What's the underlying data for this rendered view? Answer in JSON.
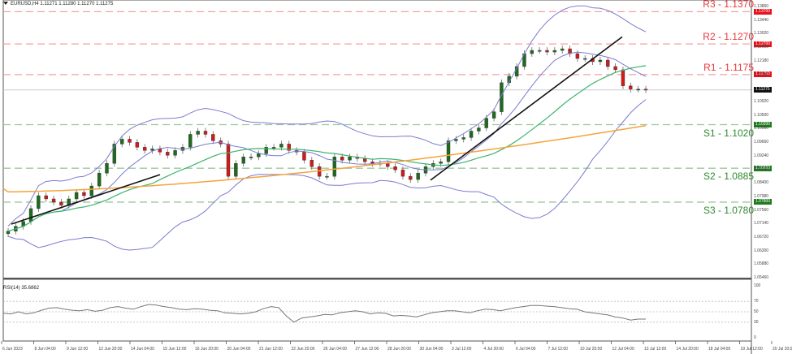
{
  "chart_data": [
    {
      "type": "candlestick",
      "title": "EURUSD,H4",
      "ohlc_header": {
        "open": "1.11271",
        "high": "1.11280",
        "low": "1.11270",
        "close": "1.11275"
      },
      "current_price": "1.11275",
      "y_axis_ticks": [
        "1.13860",
        "1.13440",
        "1.13020",
        "1.12600",
        "1.12180",
        "1.11760",
        "1.10920",
        "1.10500",
        "1.10080",
        "1.09660",
        "1.09240",
        "1.08820",
        "1.08400",
        "1.07980",
        "1.07560",
        "1.07140",
        "1.06720",
        "1.06300",
        "1.05880",
        "1.05460"
      ],
      "ylim": [
        1.0546,
        1.1386
      ],
      "x_tick_labels": [
        "6 Jun 2023",
        "8 Jun 04:00",
        "9 Jun 12:00",
        "12 Jun 20:00",
        "14 Jun 04:00",
        "15 Jun 12:00",
        "16 Jun 20:00",
        "20 Jun 04:00",
        "21 Jun 12:00",
        "22 Jun 20:00",
        "26 Jun 04:00",
        "27 Jun 12:00",
        "28 Jun 20:00",
        "30 Jun 04:00",
        "3 Jul 12:00",
        "4 Jul 20:00",
        "6 Jul 04:00",
        "7 Jul 12:00",
        "10 Jul 20:00",
        "12 Jul 04:00",
        "13 Jul 12:00",
        "14 Jul 20:00",
        "18 Jul 04:00",
        "19 Jul 12:00",
        "20 Jul 20:00"
      ],
      "levels": [
        {
          "name": "R3",
          "value": 1.137,
          "label": "R3 - 1.1370",
          "tag": "1.13700",
          "kind": "resistance"
        },
        {
          "name": "R2",
          "value": 1.127,
          "label": "R2 - 1.1270",
          "tag": "1.12700",
          "kind": "resistance"
        },
        {
          "name": "R1",
          "value": 1.1175,
          "label": "R1 - 1.1175",
          "tag": "1.11750",
          "kind": "resistance"
        },
        {
          "name": "S1",
          "value": 1.102,
          "label": "S1 - 1.1020",
          "tag": "1.10200",
          "kind": "support"
        },
        {
          "name": "S2",
          "value": 1.0885,
          "label": "S2 - 1.0885",
          "tag": "1.08850",
          "kind": "support"
        },
        {
          "name": "S3",
          "value": 1.078,
          "label": "S3 - 1.0780",
          "tag": "1.07800",
          "kind": "support"
        }
      ],
      "indicators": [
        "Bollinger Bands (blue)",
        "Moving average (green)",
        "Moving average (orange)",
        "Trendlines (black)"
      ],
      "close_series_approx": [
        1.069,
        1.0705,
        1.072,
        1.076,
        1.08,
        1.079,
        1.078,
        1.077,
        1.079,
        1.081,
        1.08,
        1.083,
        1.087,
        1.09,
        1.096,
        1.0975,
        1.0965,
        1.095,
        1.094,
        1.0945,
        1.0935,
        1.0925,
        1.094,
        1.095,
        1.099,
        1.1,
        1.099,
        1.097,
        1.096,
        1.086,
        1.09,
        1.092,
        1.092,
        1.093,
        1.095,
        1.095,
        1.096,
        1.094,
        1.0935,
        1.091,
        1.089,
        1.086,
        1.086,
        1.092,
        1.091,
        1.092,
        1.0915,
        1.0905,
        1.09,
        1.09,
        1.089,
        1.088,
        1.086,
        1.085,
        1.087,
        1.089,
        1.09,
        1.0905,
        1.097,
        1.0975,
        1.098,
        1.1,
        1.101,
        1.104,
        1.106,
        1.115,
        1.117,
        1.12,
        1.124,
        1.125,
        1.125,
        1.1245,
        1.125,
        1.1255,
        1.124,
        1.1225,
        1.1225,
        1.1215,
        1.122,
        1.12,
        1.119,
        1.114,
        1.113,
        1.113,
        1.1128
      ]
    },
    {
      "type": "line",
      "title": "RSI(14) 35.6862",
      "ylim": [
        0,
        100
      ],
      "y_ticks": [
        "100",
        "70",
        "50",
        "30",
        "0"
      ],
      "values_approx": [
        47,
        46,
        50,
        46,
        48,
        53,
        57,
        58,
        55,
        53,
        52,
        54,
        51,
        53,
        58,
        60,
        57,
        55,
        60,
        64,
        63,
        60,
        58,
        55,
        54,
        56,
        55,
        53,
        52,
        48,
        47,
        46,
        47,
        50,
        56,
        60,
        58,
        42,
        30,
        38,
        40,
        42,
        45,
        44,
        48,
        50,
        52,
        50,
        46,
        48,
        47,
        42,
        43,
        42,
        40,
        44,
        48,
        50,
        52,
        52,
        50,
        48,
        52,
        55,
        54,
        52,
        55,
        58,
        60,
        62,
        62,
        61,
        60,
        58,
        56,
        55,
        50,
        48,
        46,
        44,
        40,
        38,
        34,
        36,
        36
      ]
    }
  ],
  "header": {
    "title": "EURUSD,H4  1.11271 1.11280 1.11270 1.11275"
  },
  "rsi": {
    "label": "RSI(14) 35.6862"
  },
  "axis": {
    "current_tag": "1.11275"
  }
}
